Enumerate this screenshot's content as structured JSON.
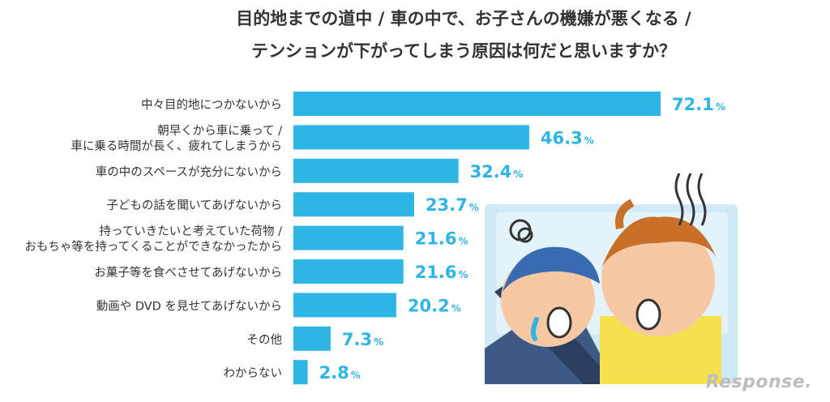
{
  "chart_data": {
    "type": "bar",
    "orientation": "horizontal",
    "title_lines": [
      "目的地までの道中 / 車の中で、お子さんの機嫌が悪くなる /",
      "テンションが下がってしまう原因は何だと思いますか？"
    ],
    "categories": [
      [
        "中々目的地につかないから"
      ],
      [
        "朝早くから車に乗って /",
        "車に乗る時間が長く、疲れてしまうから"
      ],
      [
        "車の中のスペースが充分にないから"
      ],
      [
        "子どもの話を聞いてあげないから"
      ],
      [
        "持っていきたいと考えていた荷物 /",
        "おもちゃ等を持ってくることができなかったから"
      ],
      [
        "お菓子等を食べさせてあげないから"
      ],
      [
        "動画や DVD を見せてあげないから"
      ],
      [
        "その他"
      ],
      [
        "わからない"
      ]
    ],
    "values": [
      72.1,
      46.3,
      32.4,
      23.7,
      21.6,
      21.6,
      20.2,
      7.3,
      2.8
    ],
    "value_unit": "%",
    "bar_color": "#2fb4e6",
    "value_color": "#2fb4e6",
    "grid": false,
    "legend": "none"
  },
  "watermark": "Response."
}
